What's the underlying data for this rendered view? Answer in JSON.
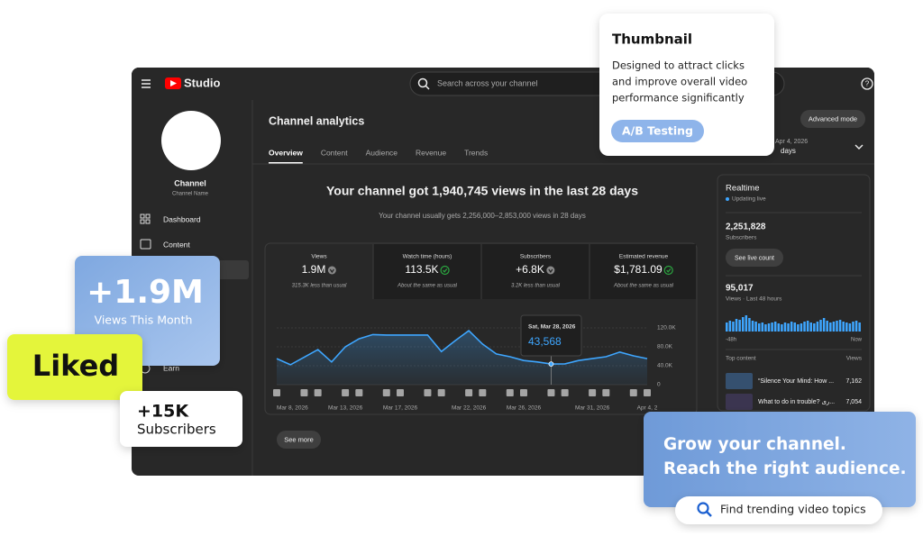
{
  "studio": {
    "logo": "Studio",
    "search": "Search across your channel",
    "channel_name": "Channel",
    "channel_handle": "Channel Name",
    "nav": [
      "Dashboard",
      "Content",
      "Earn"
    ],
    "page_title": "Channel analytics",
    "tabs": [
      "Overview",
      "Content",
      "Audience",
      "Revenue",
      "Trends"
    ],
    "advanced_mode": "Advanced mode",
    "date_range": "Apr 4, 2026",
    "date_period": "days",
    "headline": "Your channel got 1,940,745 views in the last 28 days",
    "subheadline": "Your channel usually gets 2,256,000–2,853,000 views in 28 days",
    "metrics": [
      {
        "label": "Views",
        "value": "1.9M",
        "note": "315.3K less than usual",
        "status": "down"
      },
      {
        "label": "Watch time (hours)",
        "value": "113.5K",
        "note": "About the same as usual",
        "status": "same"
      },
      {
        "label": "Subscribers",
        "value": "+6.8K",
        "note": "3.2K less than usual",
        "status": "down"
      },
      {
        "label": "Estimated revenue",
        "value": "$1,781.09",
        "note": "About the same as usual",
        "status": "same"
      }
    ],
    "see_more": "See more"
  },
  "chart_data": {
    "type": "line",
    "categories": [
      "Mar 8, 2026",
      null,
      null,
      null,
      null,
      "Mar 13, 2026",
      null,
      null,
      null,
      "Mar 17, 2026",
      null,
      null,
      null,
      null,
      "Mar 22, 2026",
      null,
      null,
      null,
      "Mar 26, 2026",
      null,
      null,
      null,
      null,
      "Mar 31, 2026",
      null,
      null,
      null,
      "Apr 4, 2"
    ],
    "series": [
      {
        "color": "#3ea6ff",
        "values": [
          55000,
          42000,
          58000,
          74000,
          48000,
          80000,
          97000,
          106000,
          105000,
          105000,
          105000,
          105000,
          70000,
          93000,
          114000,
          86000,
          65000,
          59000,
          51000,
          48000,
          43568,
          44000,
          51000,
          55000,
          59000,
          69000,
          61000,
          55000
        ]
      }
    ],
    "ylim": [
      0,
      120000
    ],
    "yticks": [
      0,
      {
        "value": 40000,
        "label": "40.0K"
      },
      {
        "value": 80000,
        "label": "80.0K"
      },
      {
        "value": 120000,
        "label": "120.0K"
      }
    ],
    "grid": true,
    "tooltip": {
      "date": "Sat, Mar 28, 2026",
      "value": "43,568"
    }
  },
  "realtime": {
    "title": "Realtime",
    "status": "Updating live",
    "subscribers": "2,251,828",
    "subscribers_label": "Subscribers",
    "button": "See live count",
    "views": "95,017",
    "views_label": "Views · Last 48 hours",
    "bars": [
      50,
      60,
      55,
      70,
      65,
      80,
      90,
      75,
      60,
      55,
      45,
      50,
      40,
      45,
      50,
      55,
      45,
      40,
      50,
      45,
      55,
      50,
      40,
      45,
      55,
      60,
      50,
      45,
      55,
      65,
      75,
      60,
      50,
      55,
      60,
      65,
      55,
      50,
      45,
      55,
      60,
      50
    ],
    "axis_start": "-48h",
    "axis_end": "Now",
    "top_content": "Top content",
    "views_column": "Views",
    "items": [
      {
        "title": "“Silence Your Mind: How ...",
        "views": "7,162"
      },
      {
        "title": "What to do in trouble? ری...",
        "views": "7,054"
      }
    ]
  },
  "cards": {
    "thumbnail": {
      "title": "Thumbnail",
      "lines": [
        "Designed to attract clicks",
        "and improve overall video",
        "performance significantly"
      ],
      "pill": "A/B Testing"
    },
    "views": {
      "value": "+1.9M",
      "label": "Views This Month"
    },
    "liked": "Liked",
    "subscribers": {
      "value": "+15K",
      "label": "Subscribers"
    },
    "grow": {
      "lines": [
        "Grow your channel.",
        "Reach the right audience."
      ],
      "search": "Find trending video topics"
    }
  }
}
